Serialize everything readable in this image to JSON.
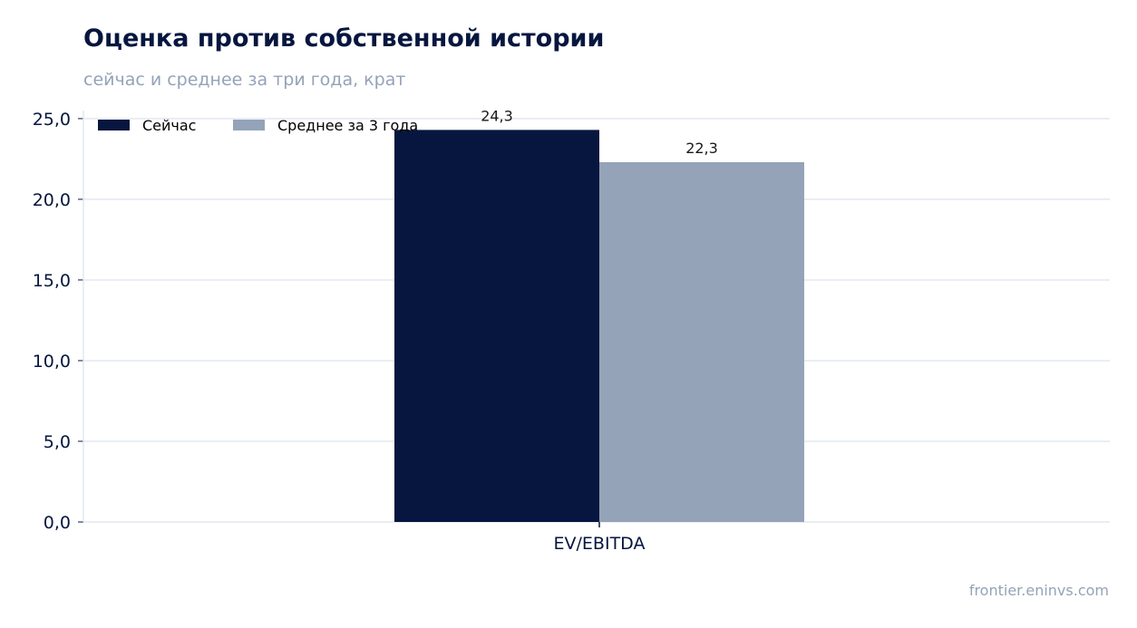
{
  "chart_data": {
    "type": "bar",
    "title": "Оценка против собственной истории",
    "subtitle": "сейчас и среднее за три года, крат",
    "categories": [
      "EV/EBITDA"
    ],
    "series": [
      {
        "name": "Сейчас",
        "values": [
          24.3
        ],
        "labels": [
          "24,3"
        ],
        "color": "#07163f"
      },
      {
        "name": "Среднее за 3 года",
        "values": [
          22.3
        ],
        "labels": [
          "22,3"
        ],
        "color": "#94a3b8"
      }
    ],
    "xlabel": "",
    "ylabel": "",
    "ylim": [
      0,
      25.5
    ],
    "yticks": [
      0,
      5,
      10,
      15,
      20,
      25
    ],
    "ytick_labels": [
      "0,0",
      "5,0",
      "10,0",
      "15,0",
      "20,0",
      "25,0"
    ],
    "grid": true,
    "legend_position": "top-left"
  },
  "source": "frontier.eninvs.com",
  "colors": {
    "title": "#07163f",
    "muted": "#94a3b8",
    "grid": "#e2e8f0"
  }
}
